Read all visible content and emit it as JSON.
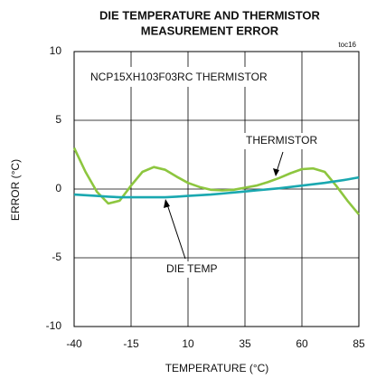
{
  "chart_data": {
    "type": "line",
    "title": [
      "DIE TEMPERATURE AND THERMISTOR",
      "MEASUREMENT ERROR"
    ],
    "tag": "toc16",
    "annotation": "NCP15XH103F03RC THERMISTOR",
    "x_label": "TEMPERATURE (°C)",
    "y_label": "ERROR (°C)",
    "x": [
      -40,
      -35,
      -30,
      -25,
      -20,
      -15,
      -10,
      -5,
      0,
      5,
      10,
      15,
      20,
      25,
      30,
      35,
      40,
      45,
      50,
      55,
      60,
      65,
      70,
      75,
      80,
      85
    ],
    "series": [
      {
        "name": "THERMISTOR",
        "color": "#8dc63f",
        "values": [
          3.0,
          1.25,
          -0.2,
          -1.05,
          -0.85,
          0.25,
          1.25,
          1.6,
          1.4,
          0.9,
          0.45,
          0.15,
          -0.05,
          -0.1,
          -0.05,
          0.1,
          0.25,
          0.5,
          0.8,
          1.15,
          1.45,
          1.5,
          1.25,
          0.25,
          -0.85,
          -1.85
        ]
      },
      {
        "name": "DIE TEMP",
        "color": "#1aa8b0",
        "values": [
          -0.4,
          -0.45,
          -0.5,
          -0.55,
          -0.6,
          -0.6,
          -0.6,
          -0.6,
          -0.6,
          -0.55,
          -0.5,
          -0.45,
          -0.4,
          -0.33,
          -0.25,
          -0.18,
          -0.1,
          -0.02,
          0.05,
          0.15,
          0.25,
          0.35,
          0.45,
          0.57,
          0.7,
          0.85
        ]
      }
    ],
    "xlim": [
      -40,
      85
    ],
    "xticks": [
      -40,
      -15,
      10,
      35,
      60,
      85
    ],
    "ylim": [
      -10,
      10
    ],
    "yticks": [
      -10,
      -5,
      0,
      5,
      10
    ],
    "grid": true
  }
}
